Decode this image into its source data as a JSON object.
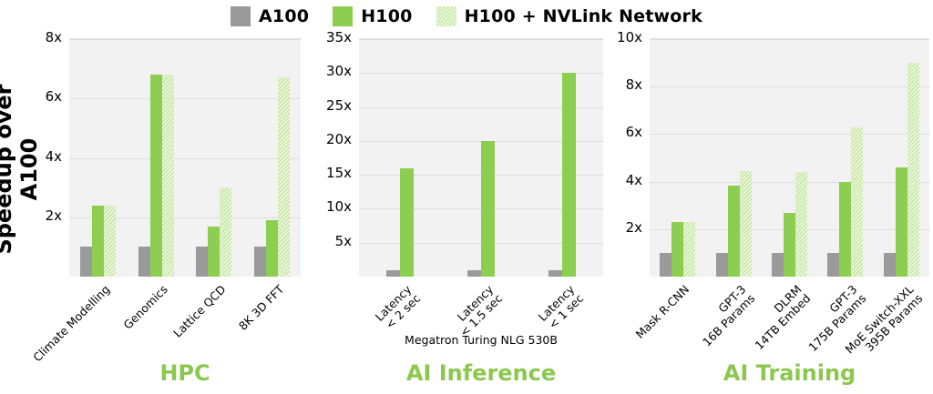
{
  "legend": [
    {
      "label": "A100",
      "color": "#9a9a9a",
      "style": "solid"
    },
    {
      "label": "H100",
      "color": "#8cce4f",
      "style": "solid"
    },
    {
      "label": "H100 + NVLink Network",
      "color": "#c4e59f",
      "style": "hatched"
    }
  ],
  "y_axis_label": "Speedup over A100",
  "chart_data": [
    {
      "type": "bar",
      "title": "HPC",
      "xlabel": "",
      "ylabel": "Speedup over A100",
      "ylim": [
        0,
        8
      ],
      "yticks": [
        "2x",
        "4x",
        "6x",
        "8x"
      ],
      "grid": true,
      "legend_position": "top",
      "categories": [
        "Climate Modelling",
        "Genomics",
        "Lattice QCD",
        "8K 3D FFT"
      ],
      "series": [
        {
          "name": "A100",
          "values": [
            1,
            1,
            1,
            1
          ]
        },
        {
          "name": "H100",
          "values": [
            2.4,
            6.8,
            1.7,
            1.9
          ]
        },
        {
          "name": "H100 + NVLink Network",
          "values": [
            2.4,
            6.8,
            3.0,
            6.7
          ]
        }
      ]
    },
    {
      "type": "bar",
      "title": "AI Inference",
      "xlabel": "Megatron Turing NLG 530B",
      "ylabel": "",
      "ylim": [
        0,
        35
      ],
      "yticks": [
        "5x",
        "10x",
        "15x",
        "20x",
        "25x",
        "30x",
        "35x"
      ],
      "grid": true,
      "categories": [
        "Latency < 2 sec",
        "Latency < 1.5 sec",
        "Latency < 1 sec"
      ],
      "series": [
        {
          "name": "A100",
          "values": [
            1,
            1,
            1
          ]
        },
        {
          "name": "H100",
          "values": [
            16,
            20,
            30
          ]
        }
      ]
    },
    {
      "type": "bar",
      "title": "AI Training",
      "xlabel": "",
      "ylabel": "",
      "ylim": [
        0,
        10
      ],
      "yticks": [
        "2x",
        "4x",
        "6x",
        "8x",
        "10x"
      ],
      "grid": true,
      "categories": [
        "Mask R-CNN",
        "GPT-3 16B Params",
        "DLRM 14TB Embed",
        "GPT-3 175B Params",
        "MoE Switch-XXL 395B Params"
      ],
      "series": [
        {
          "name": "A100",
          "values": [
            1,
            1,
            1,
            1,
            1
          ]
        },
        {
          "name": "H100",
          "values": [
            2.3,
            3.85,
            2.7,
            4.0,
            4.6
          ]
        },
        {
          "name": "H100 + NVLink Network",
          "values": [
            2.3,
            4.45,
            4.4,
            6.3,
            9.0
          ]
        }
      ]
    }
  ],
  "panels": [
    {
      "title": "HPC",
      "ticks": [
        "2x",
        "4x",
        "6x",
        "8x"
      ],
      "labels": [
        [
          "Climate Modelling"
        ],
        [
          "Genomics"
        ],
        [
          "Lattice QCD"
        ],
        [
          "8K 3D FFT"
        ]
      ]
    },
    {
      "title": "AI Inference",
      "subtitle": "Megatron Turing NLG 530B",
      "ticks": [
        "5x",
        "10x",
        "15x",
        "20x",
        "25x",
        "30x",
        "35x"
      ],
      "labels": [
        [
          "Latency",
          "< 2 sec"
        ],
        [
          "Latency",
          "< 1.5 sec"
        ],
        [
          "Latency",
          "< 1 sec"
        ]
      ]
    },
    {
      "title": "AI Training",
      "ticks": [
        "2x",
        "4x",
        "6x",
        "8x",
        "10x"
      ],
      "labels": [
        [
          "Mask R-CNN"
        ],
        [
          "GPT-3",
          "16B Params"
        ],
        [
          "DLRM",
          "14TB Embed"
        ],
        [
          "GPT-3",
          "175B Params"
        ],
        [
          "MoE Switch-XXL",
          "395B Params"
        ]
      ]
    }
  ]
}
